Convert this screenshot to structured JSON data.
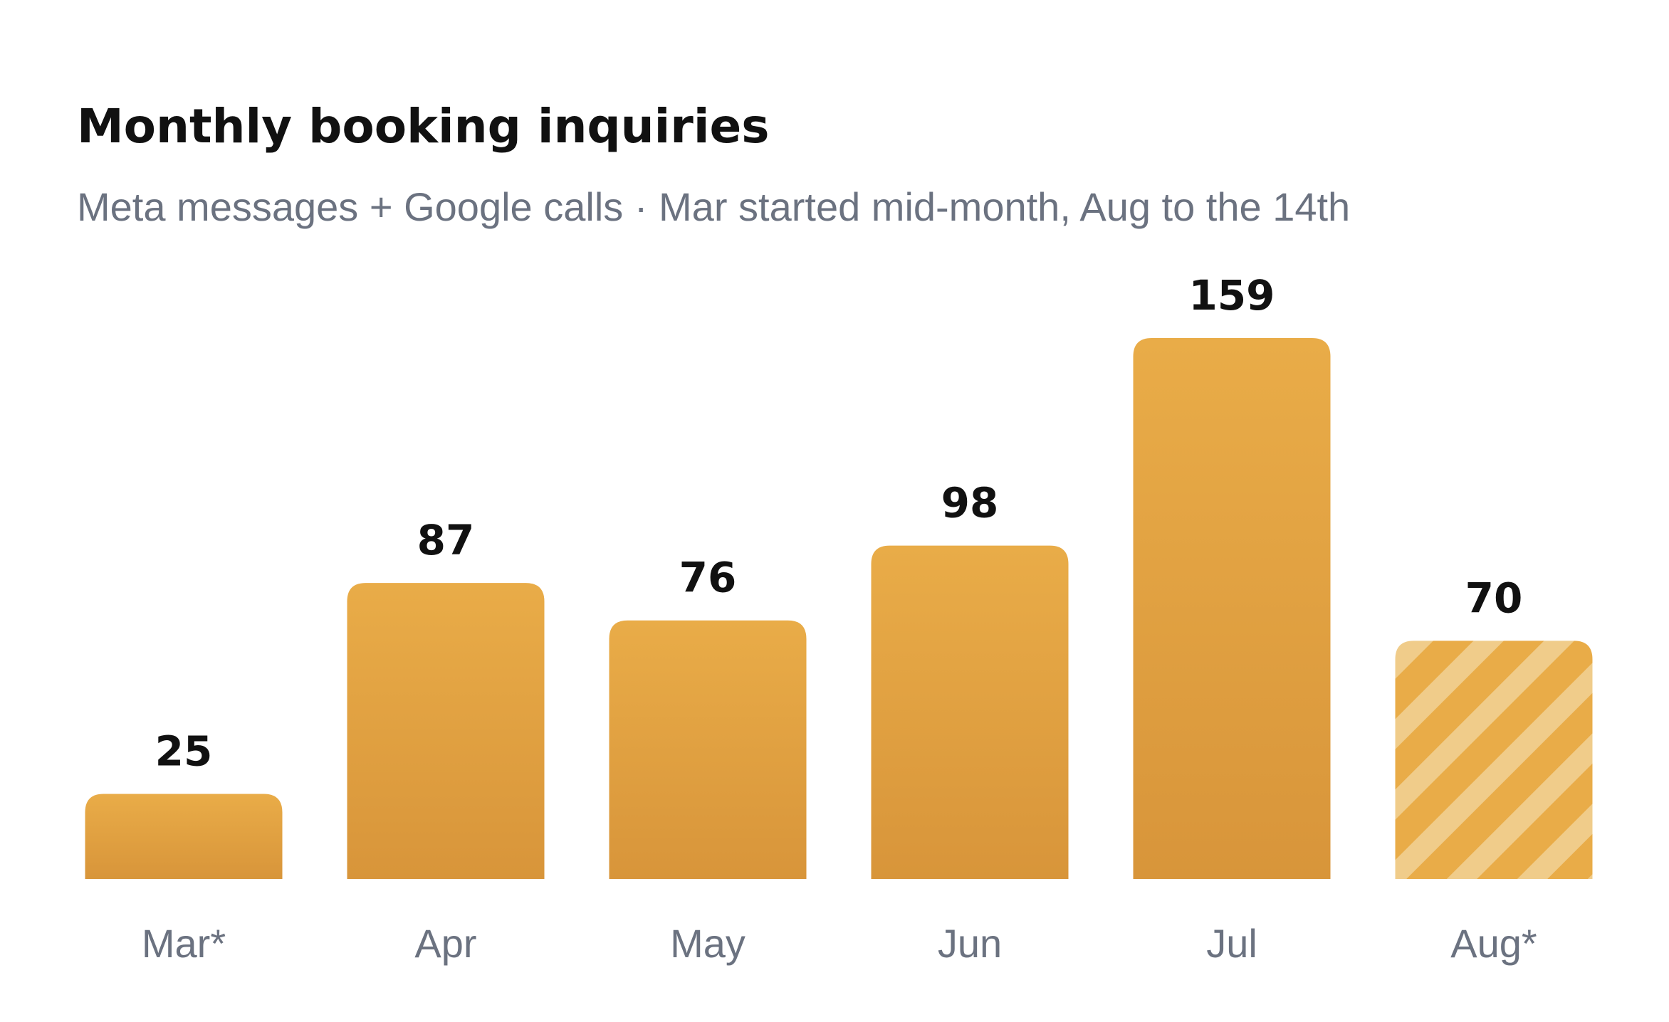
{
  "chart_data": {
    "type": "bar",
    "title": "Monthly booking inquiries",
    "subtitle": "Meta messages + Google calls · Mar started mid-month, Aug to the 14th",
    "categories": [
      "Mar*",
      "Apr",
      "May",
      "Jun",
      "Jul",
      "Aug*"
    ],
    "values": [
      25,
      87,
      76,
      98,
      159,
      70
    ],
    "hatched": [
      false,
      false,
      false,
      false,
      false,
      true
    ],
    "color": "#e3a240"
  }
}
